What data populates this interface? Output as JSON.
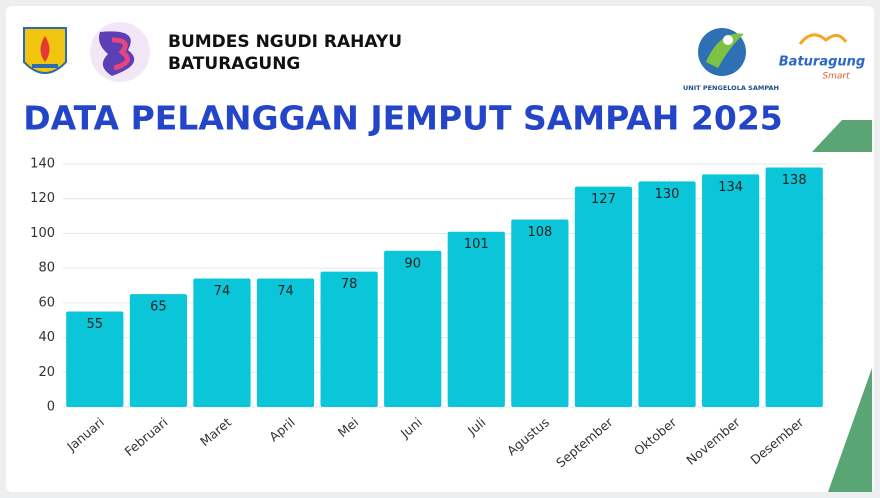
{
  "header": {
    "org_line1": "BUMDES NGUDI RAHAYU",
    "org_line2": "BATURAGUNG",
    "logo_right_caption": "UNIT PENGELOLA SAMPAH",
    "logo_brand": "Baturagung",
    "logo_brand_sub": "Smart"
  },
  "chart_data": {
    "type": "bar",
    "title": "DATA PELANGGAN JEMPUT SAMPAH 2025",
    "categories": [
      "Januari",
      "Februari",
      "Maret",
      "April",
      "Mei",
      "Juni",
      "Juli",
      "Agustus",
      "September",
      "Oktober",
      "November",
      "Desember"
    ],
    "values": [
      55,
      65,
      74,
      74,
      78,
      90,
      101,
      108,
      127,
      130,
      134,
      138
    ],
    "color": "#0bc6d8",
    "ylim": [
      0,
      140
    ],
    "yticks": [
      0,
      20,
      40,
      60,
      80,
      100,
      120,
      140
    ],
    "grid": true
  }
}
